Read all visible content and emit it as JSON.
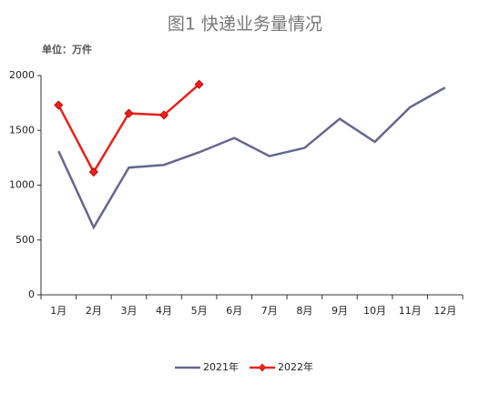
{
  "chart_data": {
    "type": "line",
    "title": "图1 快递业务量情况",
    "unit": "单位：万件",
    "categories": [
      "1月",
      "2月",
      "3月",
      "4月",
      "5月",
      "6月",
      "7月",
      "8月",
      "9月",
      "10月",
      "11月",
      "12月"
    ],
    "series": [
      {
        "name": "2021年",
        "color": "#66668f",
        "values": [
          1310,
          615,
          1160,
          1185,
          1300,
          1430,
          1265,
          1340,
          1605,
          1395,
          1710,
          1890
        ]
      },
      {
        "name": "2022年",
        "color": "#e8211b",
        "marker": "diamond",
        "values": [
          1730,
          1120,
          1655,
          1640,
          1920,
          null,
          null,
          null,
          null,
          null,
          null,
          null
        ]
      }
    ],
    "ylim": [
      0,
      2000
    ],
    "yticks": [
      0,
      500,
      1000,
      1500,
      2000
    ],
    "grid": false,
    "legend": "bottom"
  }
}
